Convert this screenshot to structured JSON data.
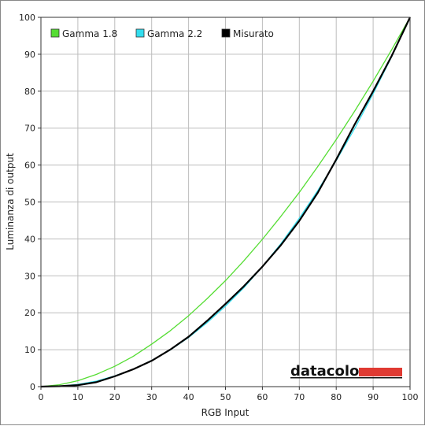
{
  "chart_data": {
    "type": "line",
    "xlabel": "RGB Input",
    "ylabel": "Luminanza di output",
    "xlim": [
      0,
      100
    ],
    "ylim": [
      0,
      100
    ],
    "xticks": [
      0,
      10,
      20,
      30,
      40,
      50,
      60,
      70,
      80,
      90,
      100
    ],
    "yticks": [
      0,
      10,
      20,
      30,
      40,
      50,
      60,
      70,
      80,
      90,
      100
    ],
    "grid": true,
    "legend_position": "top-left",
    "series": [
      {
        "name": "Gamma 1.8",
        "color": "#55dd33",
        "x": [
          0,
          5,
          10,
          15,
          20,
          25,
          30,
          35,
          40,
          45,
          50,
          55,
          60,
          65,
          70,
          75,
          80,
          85,
          90,
          95,
          100
        ],
        "y": [
          0,
          0.5,
          1.6,
          3.3,
          5.5,
          8.2,
          11.5,
          15.1,
          19.2,
          23.8,
          28.7,
          34.1,
          39.9,
          46.1,
          52.6,
          59.6,
          66.9,
          74.6,
          82.7,
          91.2,
          100
        ]
      },
      {
        "name": "Gamma 2.2",
        "color": "#33ddee",
        "x": [
          0,
          5,
          10,
          15,
          20,
          25,
          30,
          35,
          40,
          45,
          50,
          55,
          60,
          65,
          70,
          75,
          80,
          85,
          90,
          95,
          100
        ],
        "y": [
          0,
          0.1,
          0.6,
          1.5,
          2.9,
          4.7,
          7.1,
          9.9,
          13.3,
          17.3,
          21.8,
          26.8,
          32.5,
          38.7,
          45.6,
          53.1,
          61.2,
          69.9,
          79.3,
          89.3,
          100
        ]
      },
      {
        "name": "Misurato",
        "color": "#000000",
        "x": [
          0,
          5,
          10,
          15,
          20,
          25,
          30,
          35,
          40,
          45,
          50,
          55,
          60,
          65,
          70,
          75,
          80,
          85,
          90,
          95,
          100
        ],
        "y": [
          0,
          0.1,
          0.4,
          1.2,
          2.8,
          4.7,
          7.0,
          10.0,
          13.5,
          17.8,
          22.4,
          27.2,
          32.5,
          38.3,
          44.9,
          52.5,
          61.5,
          71.0,
          80.0,
          89.5,
          100
        ]
      }
    ]
  },
  "brand": {
    "text": "datacolor",
    "accent_color": "#e03a32"
  }
}
